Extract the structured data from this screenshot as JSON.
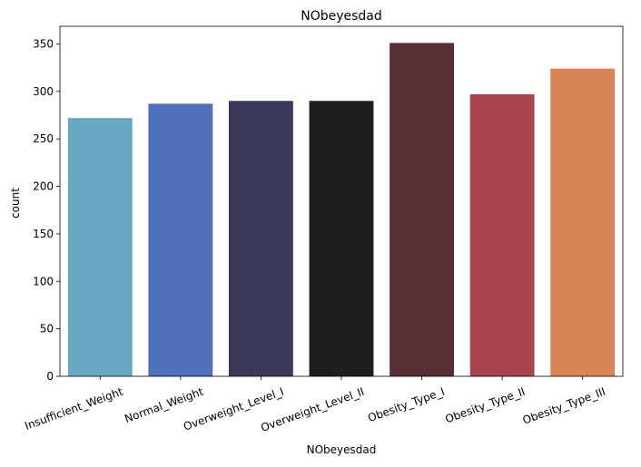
{
  "chart_data": {
    "type": "bar",
    "title": "NObeyesdad",
    "xlabel": "NObeyesdad",
    "ylabel": "count",
    "categories": [
      "Insufficient_Weight",
      "Normal_Weight",
      "Overweight_Level_I",
      "Overweight_Level_II",
      "Obesity_Type_I",
      "Obesity_Type_II",
      "Obesity_Type_III"
    ],
    "values": [
      272,
      287,
      290,
      290,
      351,
      297,
      324
    ],
    "colors": [
      "#6aa7c3",
      "#5070bb",
      "#3a3a58",
      "#1e1e1e",
      "#592e35",
      "#a9434e",
      "#d88454"
    ],
    "ylim": [
      0,
      368.55
    ],
    "yticks": [
      0,
      50,
      100,
      150,
      200,
      250,
      300,
      350
    ],
    "grid": false
  }
}
